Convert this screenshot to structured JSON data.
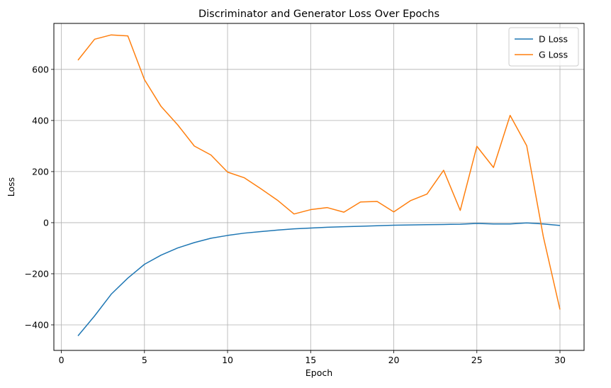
{
  "chart_data": {
    "type": "line",
    "title": "Discriminator and Generator Loss Over Epochs",
    "xlabel": "Epoch",
    "ylabel": "Loss",
    "xlim": [
      -0.45,
      31.45
    ],
    "ylim": [
      -500,
      780
    ],
    "xticks": [
      0,
      5,
      10,
      15,
      20,
      25,
      30
    ],
    "yticks": [
      -400,
      -200,
      0,
      200,
      400,
      600
    ],
    "grid": true,
    "legend_position": "top-right",
    "x": [
      1,
      2,
      3,
      4,
      5,
      6,
      7,
      8,
      9,
      10,
      11,
      12,
      13,
      14,
      15,
      16,
      17,
      18,
      19,
      20,
      21,
      22,
      23,
      24,
      25,
      26,
      27,
      28,
      29,
      30
    ],
    "series": [
      {
        "name": "D Loss",
        "color": "#1f77b4",
        "values": [
          -443,
          -365,
          -280,
          -217,
          -163,
          -127,
          -99,
          -78,
          -61,
          -50,
          -41,
          -35,
          -29,
          -24,
          -21,
          -18,
          -16,
          -14,
          -12,
          -10,
          -9,
          -8,
          -7,
          -6,
          -3,
          -5,
          -5,
          -1,
          -5,
          -11
        ]
      },
      {
        "name": "G Loss",
        "color": "#ff7f0e",
        "values": [
          636,
          718,
          735,
          731,
          560,
          455,
          383,
          300,
          265,
          198,
          176,
          133,
          88,
          34,
          51,
          59,
          41,
          81,
          83,
          42,
          86,
          112,
          205,
          48,
          299,
          216,
          420,
          301,
          -55,
          -340
        ]
      }
    ]
  }
}
